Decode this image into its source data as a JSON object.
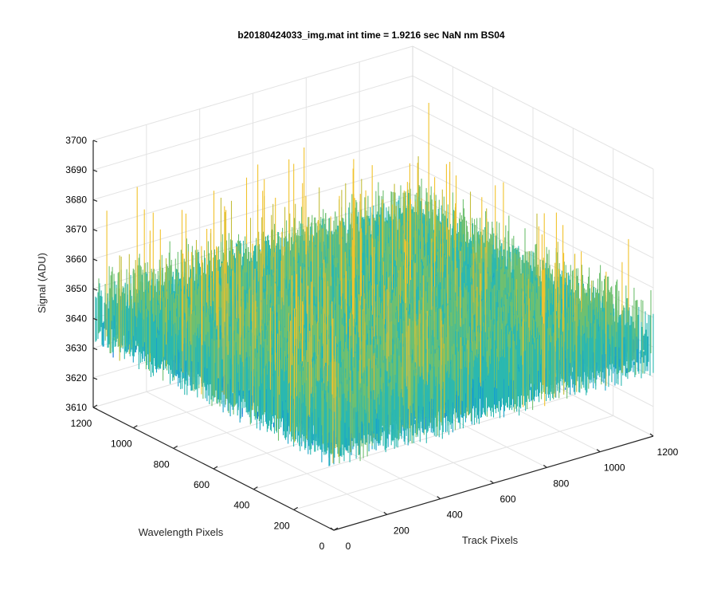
{
  "chart_data": {
    "type": "surface",
    "title": "b20180424033_img.mat int time = 1.9216 sec  NaN nm BS04",
    "zlabel": "Signal (ADU)",
    "xlabel": "Track Pixels",
    "ylabel": "Wavelength Pixels",
    "xlim": [
      0,
      1200
    ],
    "ylim": [
      0,
      1200
    ],
    "zlim": [
      3610,
      3700
    ],
    "xticks": [
      "0",
      "200",
      "400",
      "600",
      "800",
      "1000",
      "1200"
    ],
    "yticks": [
      "0",
      "200",
      "400",
      "600",
      "800",
      "1000",
      "1200"
    ],
    "zticks": [
      "3610",
      "3620",
      "3630",
      "3640",
      "3650",
      "3660",
      "3670",
      "3680",
      "3690",
      "3700"
    ],
    "grid": true,
    "colormap": "parula",
    "colors": [
      "#0c70d8",
      "#1aa3c9",
      "#2bb8b0",
      "#6fc070",
      "#c3bd3a",
      "#f1c22c"
    ],
    "data_extent": {
      "track_pixels": [
        0,
        1200
      ],
      "wavelength_pixels": [
        0,
        1200
      ]
    },
    "signal_mean": 3648,
    "signal_range": [
      3622,
      3700
    ],
    "note_values": "noise-like detector image; mean signal about 3648 ADU with spikes up to about 3700 ADU"
  }
}
